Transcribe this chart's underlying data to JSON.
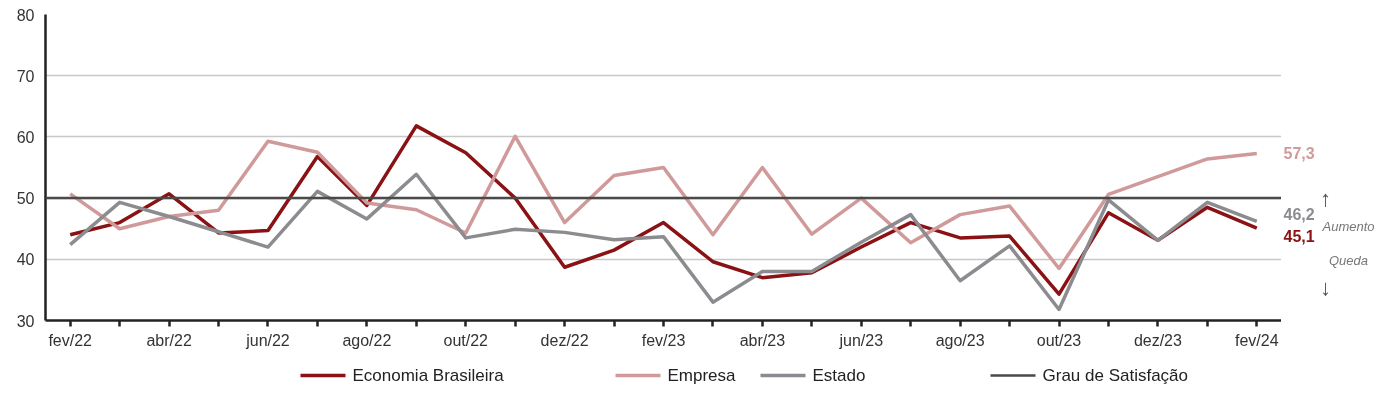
{
  "chart_data": {
    "type": "line",
    "categories": [
      "fev/22",
      null,
      "abr/22",
      null,
      "jun/22",
      null,
      "ago/22",
      null,
      "out/22",
      null,
      "dez/22",
      null,
      "fev/23",
      null,
      "abr/23",
      null,
      "jun/23",
      null,
      "ago/23",
      null,
      "out/23",
      null,
      "dez/23",
      null,
      "fev/24"
    ],
    "series": [
      {
        "name": "Economia Brasileira",
        "color": "#8b1214",
        "values": [
          44.0,
          46.0,
          50.7,
          44.3,
          44.7,
          56.8,
          48.8,
          61.8,
          57.4,
          50.0,
          38.7,
          41.5,
          46.0,
          39.6,
          37.0,
          37.8,
          42.0,
          46.0,
          43.5,
          43.8,
          34.3,
          47.6,
          43.1,
          48.5,
          45.1
        ],
        "value_labels": [
          null,
          null,
          null,
          null,
          null,
          null,
          null,
          null,
          null,
          null,
          null,
          null,
          null,
          null,
          null,
          null,
          null,
          null,
          null,
          null,
          null,
          null,
          null,
          null,
          "45,1"
        ]
      },
      {
        "name": "Empresa",
        "color": "#d09a9a",
        "values": [
          50.7,
          45.0,
          47.0,
          48.0,
          59.3,
          57.5,
          49.2,
          48.1,
          44.3,
          60.1,
          46.0,
          53.7,
          55.0,
          44.0,
          55.0,
          44.1,
          50.0,
          42.7,
          47.3,
          48.7,
          38.5,
          50.6,
          53.5,
          56.4,
          57.3
        ],
        "value_labels": [
          null,
          null,
          null,
          null,
          null,
          null,
          null,
          null,
          null,
          null,
          null,
          null,
          null,
          null,
          null,
          null,
          null,
          null,
          null,
          null,
          null,
          null,
          null,
          null,
          "57,3"
        ]
      },
      {
        "name": "Estado",
        "color": "#8c8c90",
        "values": [
          42.4,
          49.3,
          47.0,
          44.5,
          42.0,
          51.1,
          46.6,
          53.9,
          43.5,
          44.9,
          44.4,
          43.2,
          43.7,
          33.0,
          38.0,
          38.0,
          42.8,
          47.3,
          36.5,
          42.2,
          31.8,
          49.7,
          43.1,
          49.3,
          46.2
        ],
        "value_labels": [
          null,
          null,
          null,
          null,
          null,
          null,
          null,
          null,
          null,
          null,
          null,
          null,
          null,
          null,
          null,
          null,
          null,
          null,
          null,
          null,
          null,
          null,
          null,
          null,
          "46,2"
        ]
      }
    ],
    "ref_lines": [
      {
        "axis": "y",
        "value": 50,
        "label": "Grau de Satisfação",
        "color": "#4a4a4a"
      }
    ],
    "annotations": [
      "↑",
      "Aumento",
      "Queda",
      "↓"
    ],
    "ylim": [
      30,
      80
    ],
    "yticks": [
      30,
      40,
      50,
      60,
      70,
      80
    ],
    "grid": "y",
    "legend": "bottom",
    "line_style": "solid"
  }
}
